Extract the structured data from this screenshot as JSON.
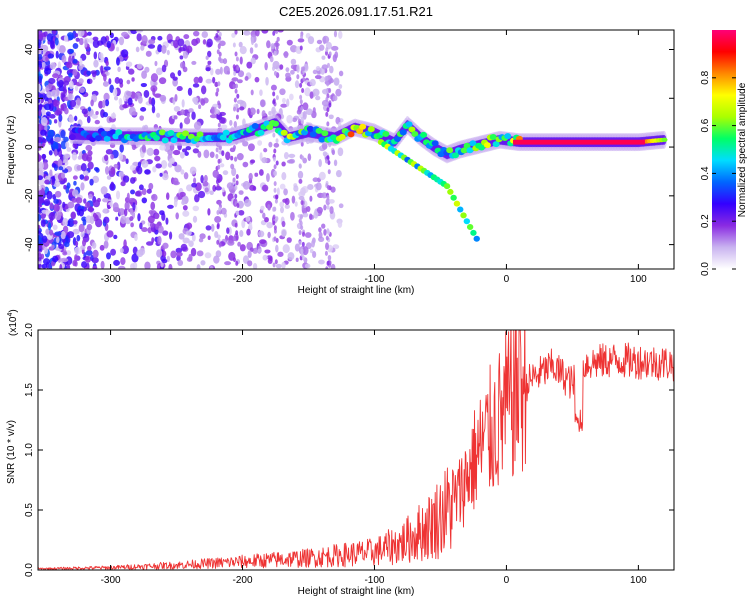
{
  "chart_data": [
    {
      "type": "heatmap",
      "title": "C2E5.2026.091.17.51.R21",
      "xlabel": "Height of straight line (km)",
      "ylabel": "Frequency (Hz)",
      "xlim": [
        -355,
        127
      ],
      "ylim": [
        -50,
        48
      ],
      "xticks": [
        -300,
        -200,
        -100,
        0,
        100
      ],
      "yticks": [
        -40,
        -20,
        0,
        20,
        40
      ],
      "colorbar": {
        "label": "Normalized spectral amplitude",
        "range": [
          0.0,
          1.0
        ],
        "ticks": [
          0.0,
          0.2,
          0.4,
          0.6,
          0.8
        ],
        "colors": [
          "#ffffff",
          "#c9b3f0",
          "#8a2be2",
          "#3300ff",
          "#0066ff",
          "#00ddff",
          "#00ff66",
          "#aaff00",
          "#ffff00",
          "#ff8800",
          "#ff0000",
          "#ff0077"
        ]
      },
      "ridge": [
        {
          "x": -330,
          "y": 5,
          "a": 0.3
        },
        {
          "x": -300,
          "y": 4.5,
          "a": 0.45
        },
        {
          "x": -270,
          "y": 4.5,
          "a": 0.55
        },
        {
          "x": -240,
          "y": 4,
          "a": 0.6
        },
        {
          "x": -210,
          "y": 4,
          "a": 0.55
        },
        {
          "x": -190,
          "y": 7,
          "a": 0.5
        },
        {
          "x": -175,
          "y": 10,
          "a": 0.6
        },
        {
          "x": -165,
          "y": 4,
          "a": 0.7
        },
        {
          "x": -150,
          "y": 6,
          "a": 0.5
        },
        {
          "x": -130,
          "y": 4,
          "a": 0.55
        },
        {
          "x": -115,
          "y": 8,
          "a": 0.85
        },
        {
          "x": -100,
          "y": 6,
          "a": 0.6
        },
        {
          "x": -85,
          "y": 2,
          "a": 0.5
        },
        {
          "x": -75,
          "y": 9,
          "a": 0.6
        },
        {
          "x": -65,
          "y": 4,
          "a": 0.55
        },
        {
          "x": -55,
          "y": 0,
          "a": 0.5
        },
        {
          "x": -45,
          "y": -3,
          "a": 0.55
        },
        {
          "x": -35,
          "y": -1,
          "a": 0.6
        },
        {
          "x": -20,
          "y": 1,
          "a": 0.7
        },
        {
          "x": -5,
          "y": 3,
          "a": 0.6
        },
        {
          "x": 10,
          "y": 2,
          "a": 0.9
        },
        {
          "x": 40,
          "y": 2,
          "a": 0.95
        },
        {
          "x": 70,
          "y": 2,
          "a": 0.95
        },
        {
          "x": 100,
          "y": 2,
          "a": 0.92
        },
        {
          "x": 120,
          "y": 3,
          "a": 0.6
        }
      ]
    },
    {
      "type": "line",
      "xlabel": "Height of straight line (km)",
      "ylabel": "SNR (10 * v/v)",
      "scale_note": "(x10",
      "scale_exponent": "4",
      "xlim": [
        -355,
        127
      ],
      "ylim": [
        0,
        2.0
      ],
      "xticks": [
        -300,
        -200,
        -100,
        0,
        100
      ],
      "yticks": [
        0.0,
        0.5,
        1.0,
        1.5,
        2.0
      ],
      "ytick_labels": [
        "0.0",
        "0.5",
        "1.0",
        "1.5",
        "2.0"
      ],
      "color": "#ee3333",
      "envelope": [
        {
          "x": -355,
          "y": 0.01
        },
        {
          "x": -300,
          "y": 0.02
        },
        {
          "x": -250,
          "y": 0.04
        },
        {
          "x": -200,
          "y": 0.07
        },
        {
          "x": -150,
          "y": 0.1
        },
        {
          "x": -100,
          "y": 0.15
        },
        {
          "x": -80,
          "y": 0.22
        },
        {
          "x": -60,
          "y": 0.35
        },
        {
          "x": -45,
          "y": 0.5
        },
        {
          "x": -35,
          "y": 0.65
        },
        {
          "x": -25,
          "y": 0.9
        },
        {
          "x": -15,
          "y": 1.1
        },
        {
          "x": -5,
          "y": 1.25
        },
        {
          "x": 5,
          "y": 1.45
        },
        {
          "x": 20,
          "y": 1.6
        },
        {
          "x": 35,
          "y": 1.7
        },
        {
          "x": 50,
          "y": 1.55
        },
        {
          "x": 60,
          "y": 1.72
        },
        {
          "x": 80,
          "y": 1.75
        },
        {
          "x": 100,
          "y": 1.74
        },
        {
          "x": 127,
          "y": 1.72
        }
      ],
      "peak": {
        "x": 10,
        "y": 2.0
      },
      "dip": {
        "x": 55,
        "y": 1.15
      }
    }
  ]
}
